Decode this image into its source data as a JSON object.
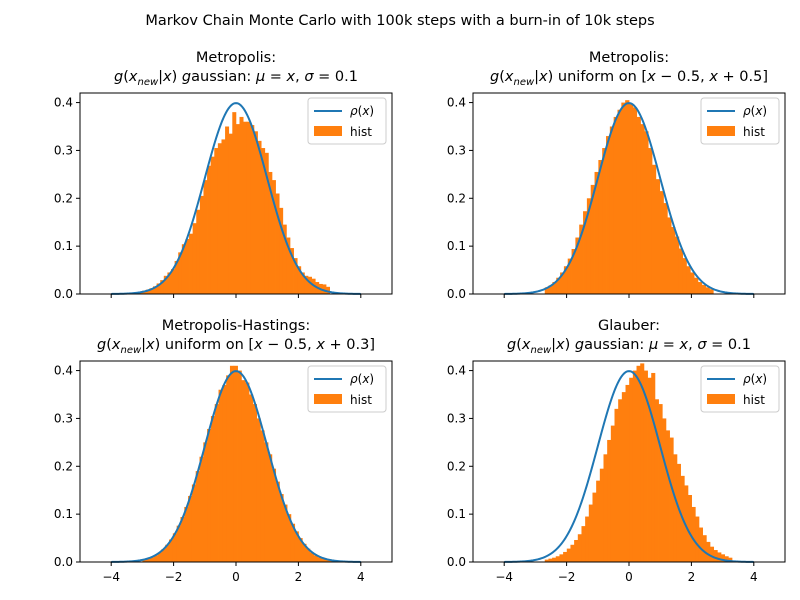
{
  "figure": {
    "suptitle": "Markov Chain Monte Carlo with 100k steps with a burn-in of 10k steps"
  },
  "colors": {
    "curve": "#1f77b4",
    "hist": "#ff7f0e"
  },
  "chart_data": [
    {
      "type": "bar",
      "title_line1": "Metropolis:",
      "title_line2": "g(x_new|x) gaussian: μ = x, σ = 0.1",
      "xlim": [
        -5,
        5
      ],
      "ylim": [
        0,
        0.42
      ],
      "xticks": [
        -4,
        -2,
        0,
        2,
        4
      ],
      "xtick_labels": [
        "",
        "",
        "",
        "",
        ""
      ],
      "yticks": [
        0,
        0.1,
        0.2,
        0.3,
        0.4
      ],
      "ytick_labels": [
        "0.0",
        "0.1",
        "0.2",
        "0.3",
        "0.4"
      ],
      "legend": {
        "curve": "ρ(x)",
        "hist": "hist",
        "placement": "upper right"
      },
      "curve": {
        "name": "ρ(x)",
        "mu": 0,
        "sigma": 1,
        "x_range": [
          -4,
          4
        ]
      },
      "hist": {
        "name": "hist",
        "x_range": [
          -3.7,
          3.0
        ],
        "values": [
          0.001,
          0.001,
          0.002,
          0.003,
          0.004,
          0.005,
          0.007,
          0.009,
          0.012,
          0.016,
          0.022,
          0.029,
          0.038,
          0.045,
          0.052,
          0.069,
          0.087,
          0.104,
          0.115,
          0.126,
          0.148,
          0.176,
          0.205,
          0.238,
          0.268,
          0.287,
          0.305,
          0.315,
          0.323,
          0.35,
          0.335,
          0.38,
          0.355,
          0.37,
          0.36,
          0.36,
          0.353,
          0.34,
          0.32,
          0.305,
          0.295,
          0.255,
          0.238,
          0.21,
          0.18,
          0.145,
          0.118,
          0.096,
          0.075,
          0.058,
          0.045,
          0.038,
          0.036,
          0.032,
          0.025,
          0.021,
          0.02,
          0.015
        ]
      }
    },
    {
      "type": "bar",
      "title_line1": "Metropolis:",
      "title_line2": "g(x_new|x) uniform on [x − 0.5, x + 0.5]",
      "xlim": [
        -5,
        5
      ],
      "ylim": [
        0,
        0.42
      ],
      "xticks": [
        -4,
        -2,
        0,
        2,
        4
      ],
      "xtick_labels": [
        "",
        "",
        "",
        "",
        ""
      ],
      "yticks": [
        0,
        0.1,
        0.2,
        0.3,
        0.4
      ],
      "ytick_labels": [
        "0.0",
        "0.1",
        "0.2",
        "0.3",
        "0.4"
      ],
      "legend": {
        "curve": "ρ(x)",
        "hist": "hist",
        "placement": "upper right"
      },
      "curve": {
        "name": "ρ(x)",
        "mu": 0,
        "sigma": 1,
        "x_range": [
          -4,
          4
        ]
      },
      "hist": {
        "name": "hist",
        "x_range": [
          -2.7,
          2.7
        ],
        "values": [
          0.014,
          0.018,
          0.025,
          0.034,
          0.045,
          0.058,
          0.074,
          0.094,
          0.118,
          0.145,
          0.173,
          0.2,
          0.228,
          0.255,
          0.28,
          0.305,
          0.33,
          0.35,
          0.37,
          0.385,
          0.4,
          0.405,
          0.398,
          0.39,
          0.37,
          0.355,
          0.34,
          0.305,
          0.27,
          0.24,
          0.215,
          0.19,
          0.16,
          0.14,
          0.12,
          0.095,
          0.075,
          0.058,
          0.045,
          0.034,
          0.025,
          0.019,
          0.014,
          0.01
        ]
      }
    },
    {
      "type": "bar",
      "title_line1": "Metropolis-Hastings:",
      "title_line2": "g(x_new|x) uniform on [x − 0.5, x + 0.3]",
      "xlim": [
        -5,
        5
      ],
      "ylim": [
        0,
        0.42
      ],
      "xticks": [
        -4,
        -2,
        0,
        2,
        4
      ],
      "xtick_labels": [
        "−4",
        "−2",
        "0",
        "2",
        "4"
      ],
      "yticks": [
        0,
        0.1,
        0.2,
        0.3,
        0.4
      ],
      "ytick_labels": [
        "0.0",
        "0.1",
        "0.2",
        "0.3",
        "0.4"
      ],
      "legend": {
        "curve": "ρ(x)",
        "hist": "hist",
        "placement": "upper right"
      },
      "curve": {
        "name": "ρ(x)",
        "mu": 0,
        "sigma": 1,
        "x_range": [
          -4,
          4
        ]
      },
      "hist": {
        "name": "hist",
        "x_range": [
          -3.0,
          3.1
        ],
        "values": [
          0.005,
          0.007,
          0.01,
          0.014,
          0.02,
          0.027,
          0.036,
          0.047,
          0.06,
          0.076,
          0.094,
          0.115,
          0.138,
          0.162,
          0.19,
          0.22,
          0.25,
          0.278,
          0.305,
          0.33,
          0.36,
          0.37,
          0.39,
          0.41,
          0.41,
          0.4,
          0.38,
          0.375,
          0.35,
          0.33,
          0.3,
          0.275,
          0.25,
          0.225,
          0.195,
          0.168,
          0.142,
          0.12,
          0.1,
          0.08,
          0.064,
          0.05,
          0.038,
          0.028,
          0.02,
          0.014,
          0.01,
          0.007,
          0.005,
          0.004
        ]
      }
    },
    {
      "type": "bar",
      "title_line1": "Glauber:",
      "title_line2": "g(x_new|x) gaussian: μ = x, σ = 0.1",
      "xlim": [
        -5,
        5
      ],
      "ylim": [
        0,
        0.42
      ],
      "xticks": [
        -4,
        -2,
        0,
        2,
        4
      ],
      "xtick_labels": [
        "−4",
        "−2",
        "0",
        "2",
        "4"
      ],
      "yticks": [
        0,
        0.1,
        0.2,
        0.3,
        0.4
      ],
      "ytick_labels": [
        "0.0",
        "0.1",
        "0.2",
        "0.3",
        "0.4"
      ],
      "legend": {
        "curve": "ρ(x)",
        "hist": "hist",
        "placement": "upper right"
      },
      "curve": {
        "name": "ρ(x)",
        "mu": 0,
        "sigma": 1,
        "x_range": [
          -4,
          4
        ]
      },
      "hist": {
        "name": "hist",
        "x_range": [
          -2.7,
          3.3
        ],
        "values": [
          0.005,
          0.007,
          0.009,
          0.012,
          0.016,
          0.021,
          0.028,
          0.036,
          0.046,
          0.058,
          0.075,
          0.095,
          0.12,
          0.145,
          0.17,
          0.195,
          0.225,
          0.255,
          0.285,
          0.32,
          0.34,
          0.355,
          0.37,
          0.385,
          0.4,
          0.41,
          0.415,
          0.4,
          0.385,
          0.395,
          0.34,
          0.33,
          0.3,
          0.275,
          0.26,
          0.225,
          0.205,
          0.18,
          0.16,
          0.14,
          0.115,
          0.095,
          0.072,
          0.056,
          0.042,
          0.032,
          0.025,
          0.02,
          0.016,
          0.012,
          0.009
        ]
      }
    }
  ]
}
